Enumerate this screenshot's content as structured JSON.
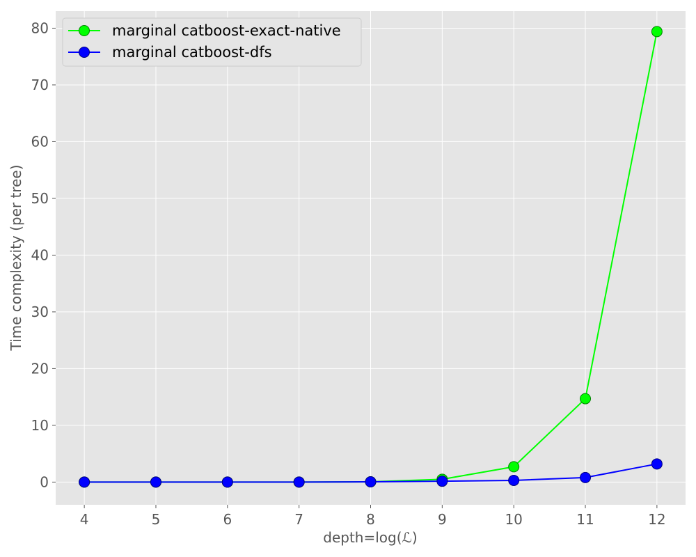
{
  "chart_data": {
    "type": "line",
    "title": "",
    "xlabel": "depth=log(ℒ)",
    "ylabel": "Time complexity (per tree)",
    "x": [
      4,
      5,
      6,
      7,
      8,
      9,
      10,
      11,
      12
    ],
    "xticks": [
      "4",
      "5",
      "6",
      "7",
      "8",
      "9",
      "10",
      "11",
      "12"
    ],
    "yticks": [
      "0",
      "10",
      "20",
      "30",
      "40",
      "50",
      "60",
      "70",
      "80"
    ],
    "xlim": [
      3.6,
      12.4
    ],
    "ylim": [
      -4,
      83
    ],
    "grid": true,
    "legend_position": "top-left",
    "series": [
      {
        "name": "marginal catboost-exact-native",
        "color": "#00ff00",
        "values": [
          0.0,
          0.0,
          0.0,
          0.0,
          0.05,
          0.5,
          2.7,
          14.7,
          79.4
        ]
      },
      {
        "name": "marginal catboost-dfs",
        "color": "#0000ff",
        "values": [
          0.0,
          0.0,
          0.0,
          0.0,
          0.05,
          0.15,
          0.3,
          0.8,
          3.2
        ]
      }
    ]
  }
}
